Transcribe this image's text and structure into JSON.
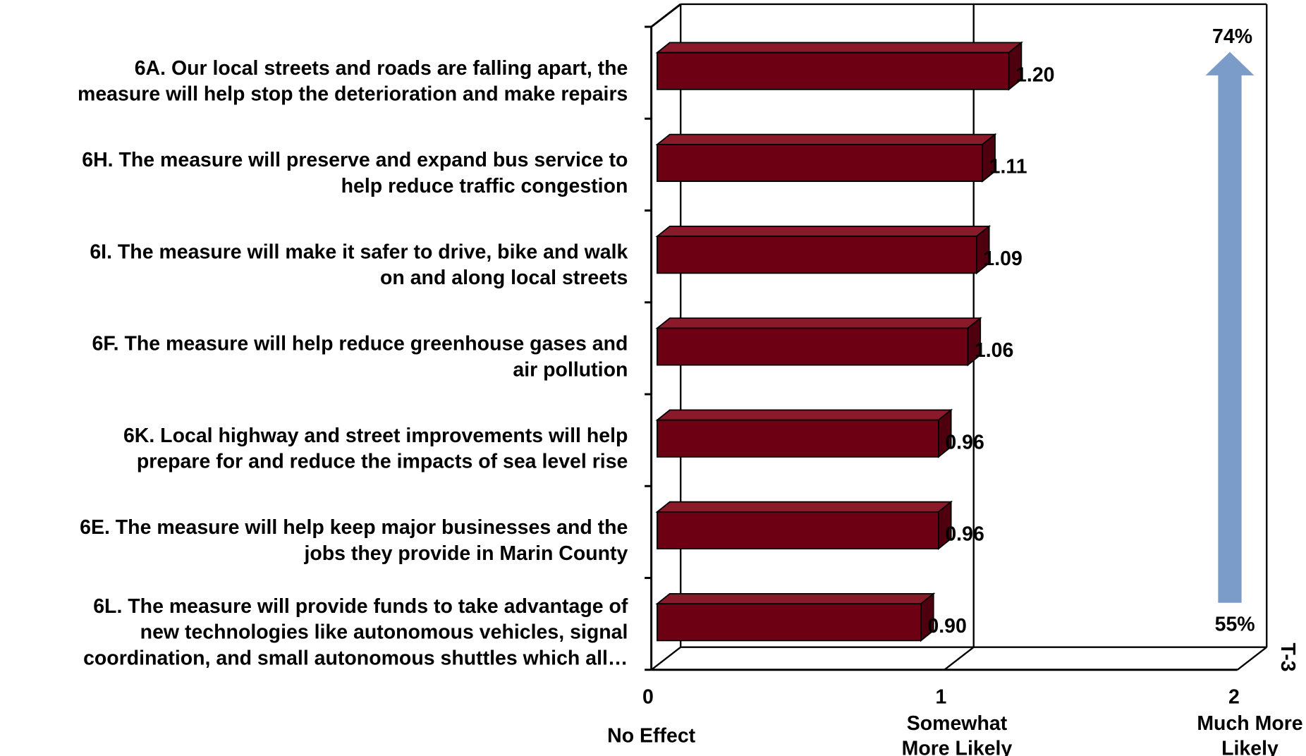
{
  "chart_data": {
    "type": "bar3d_horizontal",
    "categories": [
      "6A. Our local streets and roads are falling apart, the\nmeasure will help stop the deterioration and make repairs",
      "6H. The measure will preserve and expand bus service to\nhelp reduce traffic congestion",
      "6I. The measure will make it safer to drive, bike and walk\non and along local streets",
      "6F. The measure will help reduce greenhouse gases and\nair pollution",
      "6K. Local highway and street improvements will help\nprepare for and reduce the impacts of sea level rise",
      "6E. The measure will help keep major businesses and the\njobs they provide in Marin County",
      "6L. The measure will provide funds to take advantage of\nnew technologies like autonomous vehicles, signal\ncoordination, and small autonomous shuttles which all…"
    ],
    "values": [
      1.2,
      1.11,
      1.09,
      1.06,
      0.96,
      0.96,
      0.9
    ],
    "value_labels": [
      "1.20",
      "1.11",
      "1.09",
      "1.06",
      "0.96",
      "0.96",
      "0.90"
    ],
    "color": "#6e0014",
    "xlim": [
      0,
      2
    ],
    "xticks": [
      0,
      1,
      2
    ],
    "xtick_captions": [
      "No Effect",
      "Somewhat\nMore  Likely",
      "Much More\nLikely"
    ],
    "arrow_annotations": {
      "top": "74%",
      "bottom": "55%",
      "color": "#7b9cc9"
    },
    "page_label": "T-3"
  }
}
